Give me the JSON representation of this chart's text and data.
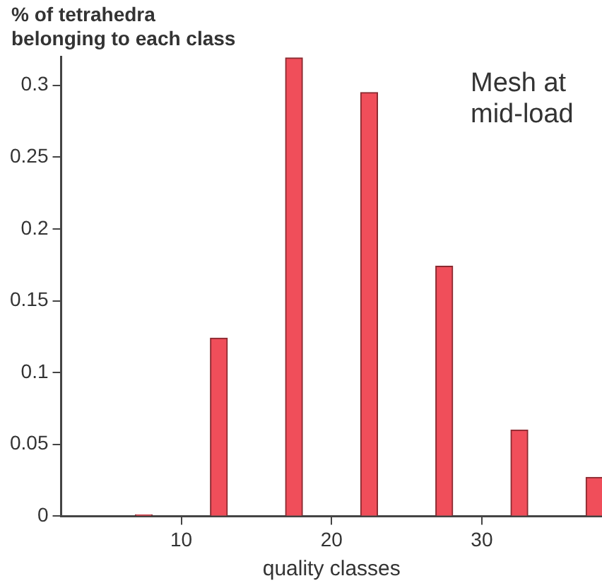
{
  "chart_data": {
    "type": "bar",
    "ylabel": "% of tetrahedra\nbelonging to each class",
    "xlabel": "quality classes",
    "annotations": [
      "Mesh at\nmid-load"
    ],
    "x": [
      7.5,
      12.5,
      17.5,
      22.5,
      27.5,
      32.5,
      37.5
    ],
    "values": [
      0.001,
      0.124,
      0.319,
      0.295,
      0.174,
      0.06,
      0.027
    ],
    "color": "#f04e5a",
    "xlim": [
      2,
      38
    ],
    "xticks": [
      10,
      20,
      30
    ],
    "ylim": [
      0,
      0.32
    ],
    "yticks": [
      0,
      0.05,
      0.1,
      0.15,
      0.2,
      0.25,
      0.3
    ],
    "grid": false,
    "legend": false
  }
}
